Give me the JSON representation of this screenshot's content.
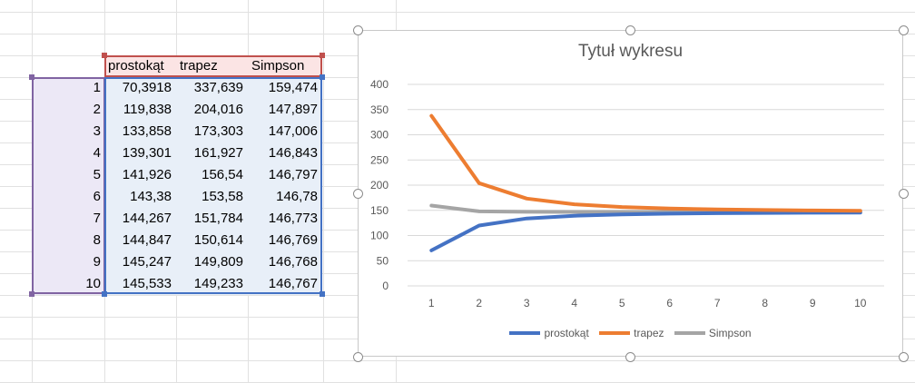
{
  "table": {
    "headers": [
      "prostokąt",
      "trapez",
      "Simpson"
    ],
    "rows": [
      {
        "n": "1",
        "prostokat": "70,3918",
        "trapez": "337,639",
        "simpson": "159,474"
      },
      {
        "n": "2",
        "prostokat": "119,838",
        "trapez": "204,016",
        "simpson": "147,897"
      },
      {
        "n": "3",
        "prostokat": "133,858",
        "trapez": "173,303",
        "simpson": "147,006"
      },
      {
        "n": "4",
        "prostokat": "139,301",
        "trapez": "161,927",
        "simpson": "146,843"
      },
      {
        "n": "5",
        "prostokat": "141,926",
        "trapez": "156,54",
        "simpson": "146,797"
      },
      {
        "n": "6",
        "prostokat": "143,38",
        "trapez": "153,58",
        "simpson": "146,78"
      },
      {
        "n": "7",
        "prostokat": "144,267",
        "trapez": "151,784",
        "simpson": "146,773"
      },
      {
        "n": "8",
        "prostokat": "144,847",
        "trapez": "150,614",
        "simpson": "146,769"
      },
      {
        "n": "9",
        "prostokat": "145,247",
        "trapez": "149,809",
        "simpson": "146,768"
      },
      {
        "n": "10",
        "prostokat": "145,533",
        "trapez": "149,233",
        "simpson": "146,767"
      }
    ]
  },
  "colors": {
    "header_border": "#c0504d",
    "index_border": "#8064a2",
    "values_border": "#4472c4",
    "prostokat": "#4472c4",
    "trapez": "#ed7d31",
    "simpson": "#a5a5a5"
  },
  "chart_data": {
    "type": "line",
    "title": "Tytuł wykresu",
    "categories": [
      "1",
      "2",
      "3",
      "4",
      "5",
      "6",
      "7",
      "8",
      "9",
      "10"
    ],
    "ylim": [
      0,
      400
    ],
    "yticks": [
      0,
      50,
      100,
      150,
      200,
      250,
      300,
      350,
      400
    ],
    "grid": true,
    "legend_position": "bottom",
    "series": [
      {
        "name": "prostokąt",
        "color": "#4472c4",
        "values": [
          70.3918,
          119.838,
          133.858,
          139.301,
          141.926,
          143.38,
          144.267,
          144.847,
          145.247,
          145.533
        ]
      },
      {
        "name": "trapez",
        "color": "#ed7d31",
        "values": [
          337.639,
          204.016,
          173.303,
          161.927,
          156.54,
          153.58,
          151.784,
          150.614,
          149.809,
          149.233
        ]
      },
      {
        "name": "Simpson",
        "color": "#a5a5a5",
        "values": [
          159.474,
          147.897,
          147.006,
          146.843,
          146.797,
          146.78,
          146.773,
          146.769,
          146.768,
          146.767
        ]
      }
    ]
  }
}
